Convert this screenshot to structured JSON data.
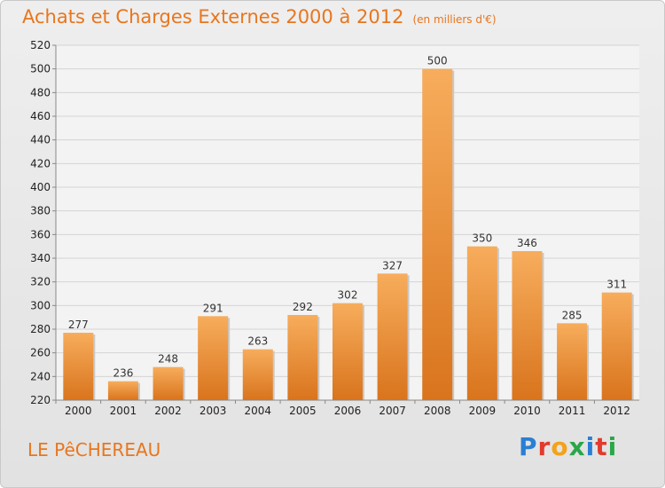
{
  "header": {
    "title": "Achats et Charges Externes 2000 à 2012",
    "unit": "(en milliers d'€)"
  },
  "footer": {
    "commune": "LE PêCHEREAU",
    "logo_letters": [
      "P",
      "r",
      "o",
      "x",
      "i",
      "t",
      "i"
    ],
    "logo_colors": [
      "#2a7fd4",
      "#e23b2e",
      "#f3a21b",
      "#2aa748",
      "#2a7fd4",
      "#e23b2e",
      "#2aa748"
    ]
  },
  "chart_data": {
    "type": "bar",
    "title": "Achats et Charges Externes 2000 à 2012",
    "subtitle": "(en milliers d'€)",
    "categories": [
      "2000",
      "2001",
      "2002",
      "2003",
      "2004",
      "2005",
      "2006",
      "2007",
      "2008",
      "2009",
      "2010",
      "2011",
      "2012"
    ],
    "values": [
      277,
      236,
      248,
      291,
      263,
      292,
      302,
      327,
      500,
      350,
      346,
      285,
      311
    ],
    "ylim": [
      220,
      520
    ],
    "ytick_step": 20,
    "grid": true,
    "bar_color": "#f09c40"
  }
}
